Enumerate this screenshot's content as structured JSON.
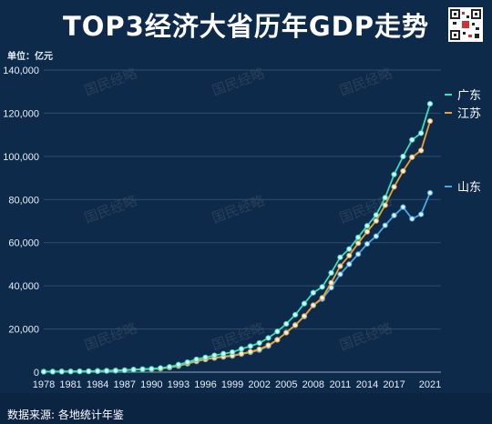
{
  "title": "TOP3经济大省历年GDP走势",
  "unit_label": "单位：亿元",
  "source": "数据来源: 各地统计年鉴",
  "watermark": "国民经略",
  "colors": {
    "background": "#0d2a4a",
    "guangdong": "#35e0c0",
    "jiangsu": "#f0a030",
    "shandong": "#4aa8e8",
    "grid": "#2e4d6e"
  },
  "chart_data": {
    "type": "line",
    "title": "TOP3经济大省历年GDP走势",
    "ylabel": "单位：亿元",
    "ylim": [
      0,
      140000
    ],
    "yticks": [
      0,
      20000,
      40000,
      60000,
      80000,
      100000,
      120000,
      140000
    ],
    "ytick_labels": [
      "0",
      "20,000",
      "40,000",
      "60,000",
      "80,000",
      "100,000",
      "120,000",
      "140,000"
    ],
    "xticks": [
      1978,
      1981,
      1984,
      1987,
      1990,
      1993,
      1996,
      1999,
      2002,
      2005,
      2008,
      2011,
      2014,
      2017,
      2021
    ],
    "grid": true,
    "legend": "right, at line ends",
    "x": [
      1978,
      1979,
      1980,
      1981,
      1982,
      1983,
      1984,
      1985,
      1986,
      1987,
      1988,
      1989,
      1990,
      1991,
      1992,
      1993,
      1994,
      1995,
      1996,
      1997,
      1998,
      1999,
      2000,
      2001,
      2002,
      2003,
      2004,
      2005,
      2006,
      2007,
      2008,
      2009,
      2010,
      2011,
      2012,
      2013,
      2014,
      2015,
      2016,
      2017,
      2018,
      2019,
      2020,
      2021
    ],
    "series": [
      {
        "name": "广东",
        "color_key": "guangdong",
        "values": [
          186,
          209,
          250,
          290,
          340,
          368,
          458,
          577,
          668,
          846,
          1155,
          1381,
          1559,
          1893,
          2447,
          3469,
          4619,
          5933,
          6835,
          7775,
          8531,
          9251,
          10741,
          12039,
          13502,
          15845,
          18865,
          22366,
          26588,
          31777,
          36797,
          39483,
          46013,
          53210,
          57068,
          62475,
          67810,
          72813,
          80855,
          91648,
          99945,
          107671,
          110761,
          124370
        ]
      },
      {
        "name": "江苏",
        "color_key": "jiangsu",
        "values": [
          249,
          298,
          320,
          350,
          390,
          438,
          518,
          652,
          745,
          922,
          1208,
          1321,
          1417,
          1601,
          2136,
          2998,
          4057,
          5155,
          6004,
          6680,
          7200,
          7697,
          8554,
          9457,
          10607,
          12443,
          15004,
          18306,
          21742,
          26018,
          30982,
          34457,
          41425,
          49110,
          54058,
          59753,
          65088,
          70116,
          77388,
          85870,
          93208,
          99632,
          102719,
          116364
        ]
      },
      {
        "name": "山东",
        "color_key": "shandong",
        "values": [
          225,
          251,
          292,
          346,
          395,
          459,
          581,
          681,
          742,
          893,
          1118,
          1293,
          1511,
          1810,
          2197,
          2771,
          3872,
          4953,
          5883,
          6537,
          7021,
          7493,
          8337,
          9195,
          10275,
          12078,
          15021,
          18366,
          21900,
          25776,
          30933,
          33897,
          39170,
          45361,
          50013,
          54684,
          59427,
          63002,
          68024,
          72634,
          76470,
          71067,
          73129,
          83096
        ]
      }
    ]
  }
}
